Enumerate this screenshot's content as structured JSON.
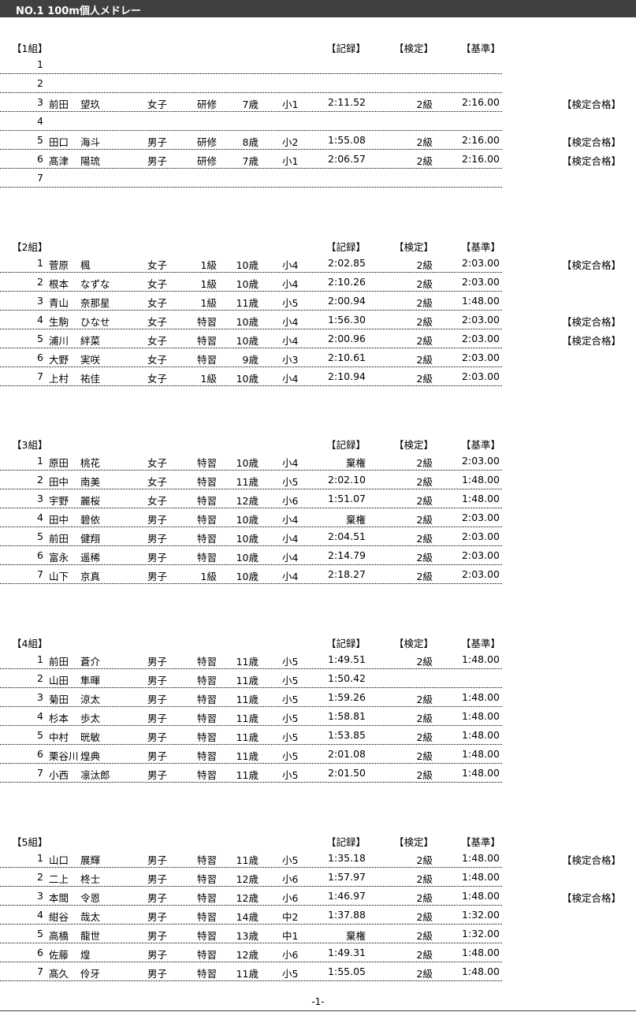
{
  "title": "NO.1  100m個人メドレー",
  "headers": {
    "record": "【記録】",
    "kentei": "【検定】",
    "standard": "【基準】"
  },
  "footer": "-1-",
  "groups": [
    {
      "label": "【1組】",
      "rows": [
        {
          "lane": "1",
          "surname": "",
          "given": "",
          "gender": "",
          "class": "",
          "age": "",
          "school": "",
          "record": "",
          "kentei": "",
          "standard": "",
          "pass": ""
        },
        {
          "lane": "2",
          "surname": "",
          "given": "",
          "gender": "",
          "class": "",
          "age": "",
          "school": "",
          "record": "",
          "kentei": "",
          "standard": "",
          "pass": ""
        },
        {
          "lane": "3",
          "surname": "前田",
          "given": "望玖",
          "gender": "女子",
          "class": "研修",
          "age": "7歳",
          "school": "小1",
          "record": "2:11.52",
          "kentei": "2級",
          "standard": "2:16.00",
          "pass": "【検定合格】"
        },
        {
          "lane": "4",
          "surname": "",
          "given": "",
          "gender": "",
          "class": "",
          "age": "",
          "school": "",
          "record": "",
          "kentei": "",
          "standard": "",
          "pass": ""
        },
        {
          "lane": "5",
          "surname": "田口",
          "given": "海斗",
          "gender": "男子",
          "class": "研修",
          "age": "8歳",
          "school": "小2",
          "record": "1:55.08",
          "kentei": "2級",
          "standard": "2:16.00",
          "pass": "【検定合格】"
        },
        {
          "lane": "6",
          "surname": "髙津",
          "given": "陽琉",
          "gender": "男子",
          "class": "研修",
          "age": "7歳",
          "school": "小1",
          "record": "2:06.57",
          "kentei": "2級",
          "standard": "2:16.00",
          "pass": "【検定合格】"
        },
        {
          "lane": "7",
          "surname": "",
          "given": "",
          "gender": "",
          "class": "",
          "age": "",
          "school": "",
          "record": "",
          "kentei": "",
          "standard": "",
          "pass": ""
        }
      ]
    },
    {
      "label": "【2組】",
      "rows": [
        {
          "lane": "1",
          "surname": "菅原",
          "given": "楓",
          "gender": "女子",
          "class": "1級",
          "age": "10歳",
          "school": "小4",
          "record": "2:02.85",
          "kentei": "2級",
          "standard": "2:03.00",
          "pass": "【検定合格】"
        },
        {
          "lane": "2",
          "surname": "根本",
          "given": "なずな",
          "gender": "女子",
          "class": "1級",
          "age": "10歳",
          "school": "小4",
          "record": "2:10.26",
          "kentei": "2級",
          "standard": "2:03.00",
          "pass": ""
        },
        {
          "lane": "3",
          "surname": "青山",
          "given": "奈那星",
          "gender": "女子",
          "class": "1級",
          "age": "11歳",
          "school": "小5",
          "record": "2:00.94",
          "kentei": "2級",
          "standard": "1:48.00",
          "pass": ""
        },
        {
          "lane": "4",
          "surname": "生駒",
          "given": "ひなせ",
          "gender": "女子",
          "class": "特習",
          "age": "10歳",
          "school": "小4",
          "record": "1:56.30",
          "kentei": "2級",
          "standard": "2:03.00",
          "pass": "【検定合格】"
        },
        {
          "lane": "5",
          "surname": "浦川",
          "given": "絆菜",
          "gender": "女子",
          "class": "特習",
          "age": "10歳",
          "school": "小4",
          "record": "2:00.96",
          "kentei": "2級",
          "standard": "2:03.00",
          "pass": "【検定合格】"
        },
        {
          "lane": "6",
          "surname": "大野",
          "given": "実咲",
          "gender": "女子",
          "class": "特習",
          "age": "9歳",
          "school": "小3",
          "record": "2:10.61",
          "kentei": "2級",
          "standard": "2:03.00",
          "pass": ""
        },
        {
          "lane": "7",
          "surname": "上村",
          "given": "祐佳",
          "gender": "女子",
          "class": "1級",
          "age": "10歳",
          "school": "小4",
          "record": "2:10.94",
          "kentei": "2級",
          "standard": "2:03.00",
          "pass": ""
        }
      ]
    },
    {
      "label": "【3組】",
      "rows": [
        {
          "lane": "1",
          "surname": "原田",
          "given": "桃花",
          "gender": "女子",
          "class": "特習",
          "age": "10歳",
          "school": "小4",
          "record": "棄権",
          "kentei": "2級",
          "standard": "2:03.00",
          "pass": ""
        },
        {
          "lane": "2",
          "surname": "田中",
          "given": "南美",
          "gender": "女子",
          "class": "特習",
          "age": "11歳",
          "school": "小5",
          "record": "2:02.10",
          "kentei": "2級",
          "standard": "1:48.00",
          "pass": ""
        },
        {
          "lane": "3",
          "surname": "宇野",
          "given": "麗桜",
          "gender": "女子",
          "class": "特習",
          "age": "12歳",
          "school": "小6",
          "record": "1:51.07",
          "kentei": "2級",
          "standard": "1:48.00",
          "pass": ""
        },
        {
          "lane": "4",
          "surname": "田中",
          "given": "碧依",
          "gender": "男子",
          "class": "特習",
          "age": "10歳",
          "school": "小4",
          "record": "棄権",
          "kentei": "2級",
          "standard": "2:03.00",
          "pass": ""
        },
        {
          "lane": "5",
          "surname": "前田",
          "given": "健翔",
          "gender": "男子",
          "class": "特習",
          "age": "10歳",
          "school": "小4",
          "record": "2:04.51",
          "kentei": "2級",
          "standard": "2:03.00",
          "pass": ""
        },
        {
          "lane": "6",
          "surname": "富永",
          "given": "遥稀",
          "gender": "男子",
          "class": "特習",
          "age": "10歳",
          "school": "小4",
          "record": "2:14.79",
          "kentei": "2級",
          "standard": "2:03.00",
          "pass": ""
        },
        {
          "lane": "7",
          "surname": "山下",
          "given": "京真",
          "gender": "男子",
          "class": "1級",
          "age": "10歳",
          "school": "小4",
          "record": "2:18.27",
          "kentei": "2級",
          "standard": "2:03.00",
          "pass": ""
        }
      ]
    },
    {
      "label": "【4組】",
      "rows": [
        {
          "lane": "1",
          "surname": "前田",
          "given": "蒼介",
          "gender": "男子",
          "class": "特習",
          "age": "11歳",
          "school": "小5",
          "record": "1:49.51",
          "kentei": "2級",
          "standard": "1:48.00",
          "pass": ""
        },
        {
          "lane": "2",
          "surname": "山田",
          "given": "隼暉",
          "gender": "男子",
          "class": "特習",
          "age": "11歳",
          "school": "小5",
          "record": "1:50.42",
          "kentei": "",
          "standard": "",
          "pass": ""
        },
        {
          "lane": "3",
          "surname": "菊田",
          "given": "涼太",
          "gender": "男子",
          "class": "特習",
          "age": "11歳",
          "school": "小5",
          "record": "1:59.26",
          "kentei": "2級",
          "standard": "1:48.00",
          "pass": ""
        },
        {
          "lane": "4",
          "surname": "杉本",
          "given": "歩太",
          "gender": "男子",
          "class": "特習",
          "age": "11歳",
          "school": "小5",
          "record": "1:58.81",
          "kentei": "2級",
          "standard": "1:48.00",
          "pass": ""
        },
        {
          "lane": "5",
          "surname": "中村",
          "given": "晄敏",
          "gender": "男子",
          "class": "特習",
          "age": "11歳",
          "school": "小5",
          "record": "1:53.85",
          "kentei": "2級",
          "standard": "1:48.00",
          "pass": ""
        },
        {
          "lane": "6",
          "surname": "栗谷川",
          "given": "煌典",
          "gender": "男子",
          "class": "特習",
          "age": "11歳",
          "school": "小5",
          "record": "2:01.08",
          "kentei": "2級",
          "standard": "1:48.00",
          "pass": ""
        },
        {
          "lane": "7",
          "surname": "小西",
          "given": "凛汰郎",
          "gender": "男子",
          "class": "特習",
          "age": "11歳",
          "school": "小5",
          "record": "2:01.50",
          "kentei": "2級",
          "standard": "1:48.00",
          "pass": ""
        }
      ]
    },
    {
      "label": "【5組】",
      "rows": [
        {
          "lane": "1",
          "surname": "山口",
          "given": "展輝",
          "gender": "男子",
          "class": "特習",
          "age": "11歳",
          "school": "小5",
          "record": "1:35.18",
          "kentei": "2級",
          "standard": "1:48.00",
          "pass": "【検定合格】"
        },
        {
          "lane": "2",
          "surname": "二上",
          "given": "柊士",
          "gender": "男子",
          "class": "特習",
          "age": "12歳",
          "school": "小6",
          "record": "1:57.97",
          "kentei": "2級",
          "standard": "1:48.00",
          "pass": ""
        },
        {
          "lane": "3",
          "surname": "本間",
          "given": "令恩",
          "gender": "男子",
          "class": "特習",
          "age": "12歳",
          "school": "小6",
          "record": "1:46.97",
          "kentei": "2級",
          "standard": "1:48.00",
          "pass": "【検定合格】"
        },
        {
          "lane": "4",
          "surname": "紺谷",
          "given": "哉太",
          "gender": "男子",
          "class": "特習",
          "age": "14歳",
          "school": "中2",
          "record": "1:37.88",
          "kentei": "2級",
          "standard": "1:32.00",
          "pass": ""
        },
        {
          "lane": "5",
          "surname": "高橋",
          "given": "龍世",
          "gender": "男子",
          "class": "特習",
          "age": "13歳",
          "school": "中1",
          "record": "棄権",
          "kentei": "2級",
          "standard": "1:32.00",
          "pass": ""
        },
        {
          "lane": "6",
          "surname": "佐藤",
          "given": "煌",
          "gender": "男子",
          "class": "特習",
          "age": "12歳",
          "school": "小6",
          "record": "1:49.31",
          "kentei": "2級",
          "standard": "1:48.00",
          "pass": ""
        },
        {
          "lane": "7",
          "surname": "髙久",
          "given": "伶牙",
          "gender": "男子",
          "class": "特習",
          "age": "11歳",
          "school": "小5",
          "record": "1:55.05",
          "kentei": "2級",
          "standard": "1:48.00",
          "pass": ""
        }
      ]
    }
  ]
}
